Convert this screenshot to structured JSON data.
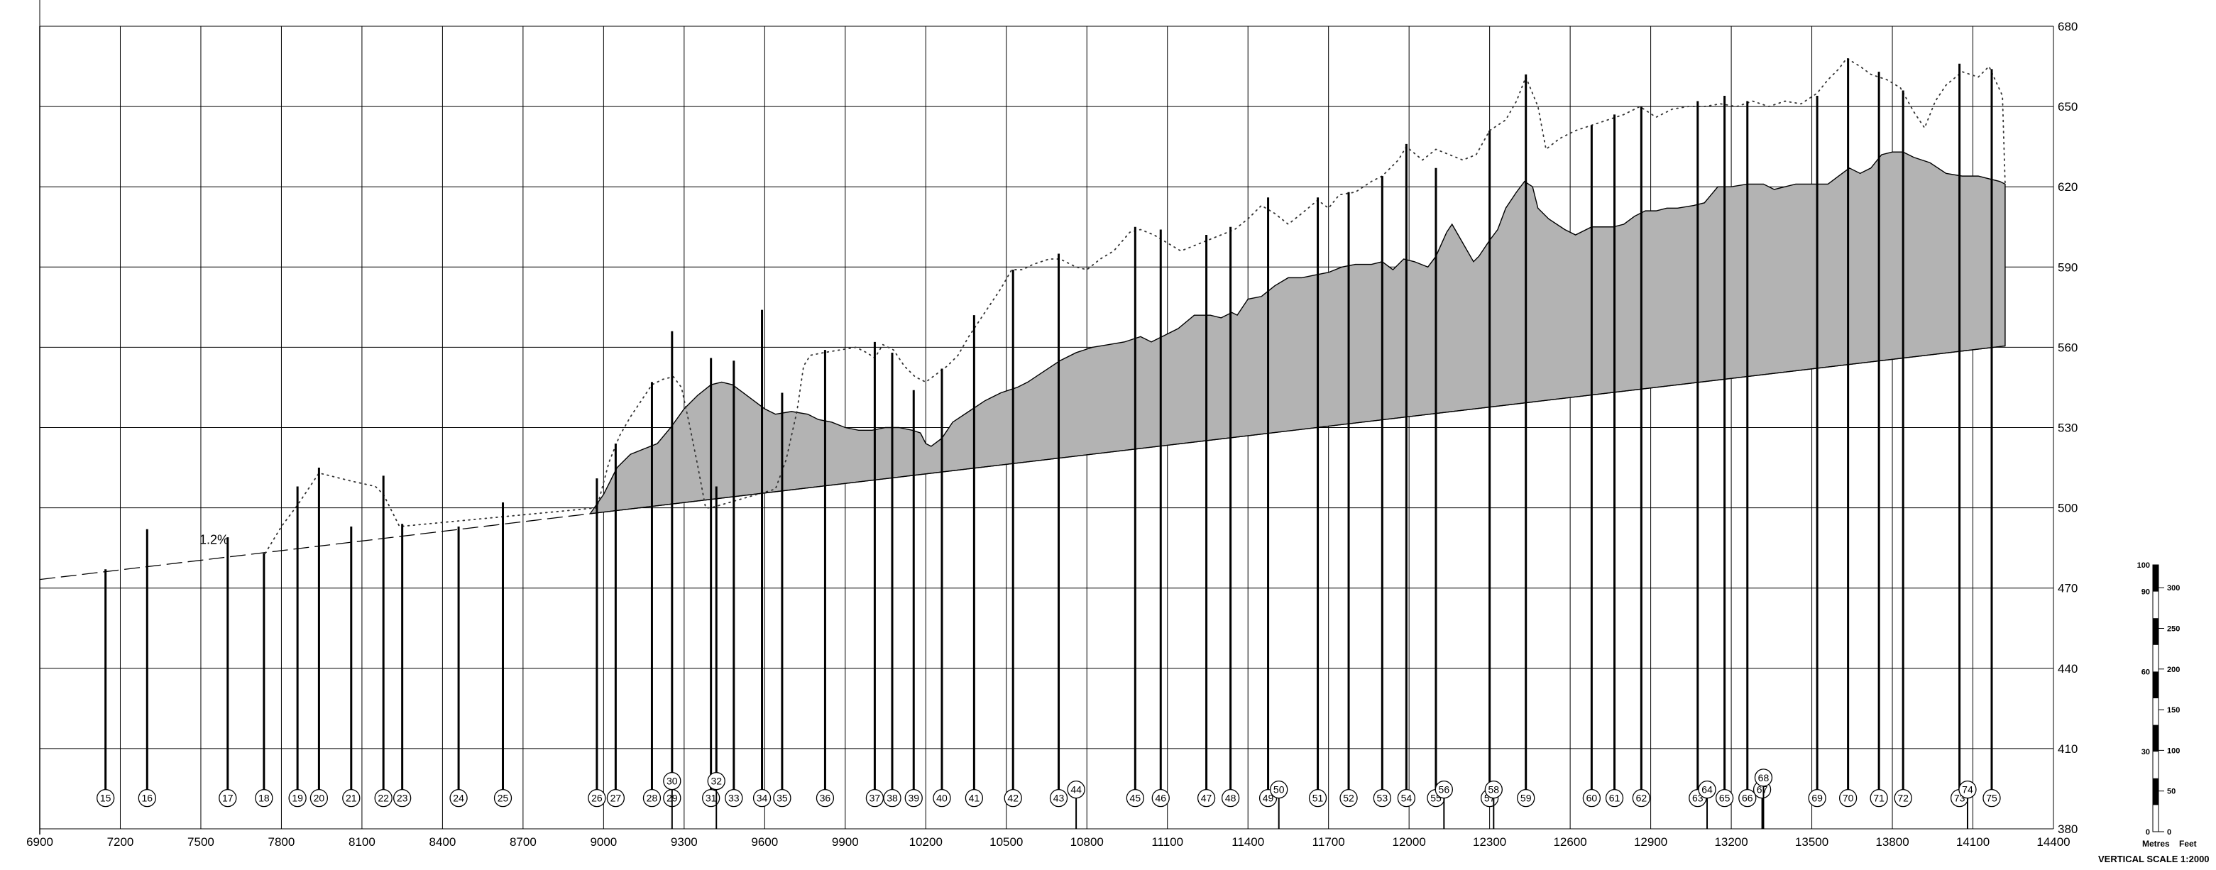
{
  "x_ticks": [
    6900,
    7200,
    7500,
    7800,
    8100,
    8400,
    8700,
    9000,
    9300,
    9600,
    9900,
    10200,
    10500,
    10800,
    11100,
    11400,
    11700,
    12000,
    12300,
    12600,
    12900,
    13200,
    13500,
    13800,
    14100,
    14400
  ],
  "y_ticks": [
    380,
    410,
    440,
    470,
    500,
    530,
    560,
    590,
    620,
    650,
    680
  ],
  "grade_label": "1.2%",
  "design_line": {
    "start": [
      6900,
      473.2
    ],
    "dashed_end": [
      8950,
      497.8
    ],
    "end": [
      14220,
      560.5
    ]
  },
  "shaft_glyph_y": 391.5,
  "shafts": [
    {
      "id": "15",
      "x": 7145,
      "top": 477
    },
    {
      "id": "16",
      "x": 7300,
      "top": 492
    },
    {
      "id": "17",
      "x": 7600,
      "top": 489
    },
    {
      "id": "18",
      "x": 7735,
      "top": 483
    },
    {
      "id": "19",
      "x": 7860,
      "top": 508
    },
    {
      "id": "20",
      "x": 7940,
      "top": 515
    },
    {
      "id": "21",
      "x": 8060,
      "top": 493
    },
    {
      "id": "22",
      "x": 8180,
      "top": 512
    },
    {
      "id": "23",
      "x": 8250,
      "top": 494
    },
    {
      "id": "24",
      "x": 8460,
      "top": 493
    },
    {
      "id": "25",
      "x": 8625,
      "top": 502
    },
    {
      "id": "26",
      "x": 8975,
      "top": 511
    },
    {
      "id": "27",
      "x": 9045,
      "top": 524
    },
    {
      "id": "28",
      "x": 9180,
      "top": 547
    },
    {
      "id": "29",
      "x": 9255,
      "top": 566
    },
    {
      "id": "30",
      "x": 9255,
      "top": 566,
      "row": 2
    },
    {
      "id": "31",
      "x": 9400,
      "top": 556
    },
    {
      "id": "32",
      "x": 9420,
      "top": 508,
      "row": 2
    },
    {
      "id": "33",
      "x": 9485,
      "top": 555
    },
    {
      "id": "34",
      "x": 9590,
      "top": 574
    },
    {
      "id": "35",
      "x": 9665,
      "top": 543
    },
    {
      "id": "36",
      "x": 9825,
      "top": 559
    },
    {
      "id": "37",
      "x": 10010,
      "top": 562
    },
    {
      "id": "38",
      "x": 10075,
      "top": 558
    },
    {
      "id": "39",
      "x": 10155,
      "top": 544
    },
    {
      "id": "40",
      "x": 10260,
      "top": 552
    },
    {
      "id": "41",
      "x": 10380,
      "top": 572
    },
    {
      "id": "42",
      "x": 10525,
      "top": 589
    },
    {
      "id": "43",
      "x": 10695,
      "top": 595
    },
    {
      "id": "44",
      "x": 10760,
      "top": 587,
      "row": 1.5
    },
    {
      "id": "45",
      "x": 10980,
      "top": 605
    },
    {
      "id": "46",
      "x": 11075,
      "top": 604
    },
    {
      "id": "47",
      "x": 11245,
      "top": 602
    },
    {
      "id": "48",
      "x": 11335,
      "top": 605
    },
    {
      "id": "49",
      "x": 11475,
      "top": 616
    },
    {
      "id": "50",
      "x": 11515,
      "top": 612,
      "row": 1.5
    },
    {
      "id": "51",
      "x": 11660,
      "top": 616
    },
    {
      "id": "52",
      "x": 11775,
      "top": 618
    },
    {
      "id": "53",
      "x": 11900,
      "top": 624
    },
    {
      "id": "54",
      "x": 11990,
      "top": 636
    },
    {
      "id": "55",
      "x": 12100,
      "top": 627
    },
    {
      "id": "56",
      "x": 12130,
      "top": 634,
      "row": 1.5
    },
    {
      "id": "57",
      "x": 12300,
      "top": 641
    },
    {
      "id": "58",
      "x": 12315,
      "top": 627,
      "row": 1.5
    },
    {
      "id": "59",
      "x": 12435,
      "top": 662
    },
    {
      "id": "60",
      "x": 12680,
      "top": 643
    },
    {
      "id": "61",
      "x": 12765,
      "top": 647
    },
    {
      "id": "62",
      "x": 12865,
      "top": 650
    },
    {
      "id": "63",
      "x": 13075,
      "top": 652
    },
    {
      "id": "64",
      "x": 13110,
      "top": 646,
      "row": 1.5
    },
    {
      "id": "65",
      "x": 13175,
      "top": 654
    },
    {
      "id": "66",
      "x": 13260,
      "top": 652
    },
    {
      "id": "67",
      "x": 13315,
      "top": 651,
      "row": 1.5
    },
    {
      "id": "68",
      "x": 13320,
      "top": 652,
      "row": 2.2
    },
    {
      "id": "69",
      "x": 13520,
      "top": 654
    },
    {
      "id": "70",
      "x": 13635,
      "top": 668
    },
    {
      "id": "71",
      "x": 13750,
      "top": 663
    },
    {
      "id": "72",
      "x": 13840,
      "top": 656
    },
    {
      "id": "73",
      "x": 14050,
      "top": 666
    },
    {
      "id": "74",
      "x": 14080,
      "top": 658,
      "row": 1.5
    },
    {
      "id": "75",
      "x": 14170,
      "top": 664
    }
  ],
  "dotted_ground": [
    [
      7740,
      483
    ],
    [
      7800,
      493
    ],
    [
      7860,
      501
    ],
    [
      7940,
      513
    ],
    [
      8060,
      510
    ],
    [
      8150,
      508
    ],
    [
      8180,
      505
    ],
    [
      8240,
      493
    ],
    [
      8975,
      500
    ],
    [
      9020,
      517
    ],
    [
      9060,
      527
    ],
    [
      9100,
      534
    ],
    [
      9140,
      540
    ],
    [
      9180,
      546
    ],
    [
      9220,
      548
    ],
    [
      9260,
      549
    ],
    [
      9290,
      545
    ],
    [
      9320,
      531
    ],
    [
      9350,
      516
    ],
    [
      9380,
      500
    ],
    [
      9400,
      500
    ],
    [
      9640,
      507
    ],
    [
      9680,
      518
    ],
    [
      9720,
      536
    ],
    [
      9745,
      553
    ],
    [
      9770,
      557
    ],
    [
      9820,
      558
    ],
    [
      9880,
      559
    ],
    [
      9940,
      560
    ],
    [
      9980,
      558
    ],
    [
      10010,
      556
    ],
    [
      10040,
      561
    ],
    [
      10080,
      559
    ],
    [
      10120,
      553
    ],
    [
      10160,
      549
    ],
    [
      10200,
      547
    ],
    [
      10240,
      550
    ],
    [
      10280,
      553
    ],
    [
      10320,
      557
    ],
    [
      10360,
      564
    ],
    [
      10400,
      570
    ],
    [
      10440,
      576
    ],
    [
      10480,
      582
    ],
    [
      10520,
      589
    ],
    [
      10560,
      589
    ],
    [
      10600,
      591
    ],
    [
      10660,
      593
    ],
    [
      10700,
      593
    ],
    [
      10760,
      590
    ],
    [
      10800,
      589
    ],
    [
      10850,
      593
    ],
    [
      10900,
      596
    ],
    [
      10960,
      603
    ],
    [
      11000,
      604
    ],
    [
      11050,
      602
    ],
    [
      11100,
      599
    ],
    [
      11150,
      596
    ],
    [
      11200,
      598
    ],
    [
      11250,
      600
    ],
    [
      11300,
      602
    ],
    [
      11350,
      604
    ],
    [
      11400,
      608
    ],
    [
      11450,
      613
    ],
    [
      11500,
      610
    ],
    [
      11550,
      606
    ],
    [
      11600,
      610
    ],
    [
      11660,
      615
    ],
    [
      11700,
      612
    ],
    [
      11740,
      617
    ],
    [
      11800,
      618
    ],
    [
      11860,
      622
    ],
    [
      11900,
      624
    ],
    [
      11960,
      630
    ],
    [
      11990,
      635
    ],
    [
      12050,
      630
    ],
    [
      12100,
      634
    ],
    [
      12150,
      632
    ],
    [
      12200,
      630
    ],
    [
      12250,
      632
    ],
    [
      12300,
      641
    ],
    [
      12360,
      645
    ],
    [
      12400,
      652
    ],
    [
      12435,
      661
    ],
    [
      12480,
      650
    ],
    [
      12510,
      634
    ],
    [
      12560,
      638
    ],
    [
      12620,
      641
    ],
    [
      12680,
      643
    ],
    [
      12740,
      645
    ],
    [
      12800,
      647
    ],
    [
      12860,
      650
    ],
    [
      12920,
      646
    ],
    [
      12980,
      649
    ],
    [
      13040,
      650
    ],
    [
      13100,
      650
    ],
    [
      13160,
      651
    ],
    [
      13220,
      650
    ],
    [
      13280,
      652
    ],
    [
      13340,
      650
    ],
    [
      13400,
      652
    ],
    [
      13460,
      651
    ],
    [
      13520,
      655
    ],
    [
      13560,
      660
    ],
    [
      13600,
      664
    ],
    [
      13630,
      668
    ],
    [
      13680,
      665
    ],
    [
      13720,
      662
    ],
    [
      13780,
      660
    ],
    [
      13830,
      657
    ],
    [
      13880,
      648
    ],
    [
      13920,
      642
    ],
    [
      13960,
      652
    ],
    [
      14000,
      658
    ],
    [
      14060,
      663
    ],
    [
      14120,
      661
    ],
    [
      14160,
      665
    ],
    [
      14210,
      654
    ],
    [
      14220,
      621
    ]
  ],
  "terrain_top": [
    [
      8950,
      497.8
    ],
    [
      9000,
      505
    ],
    [
      9050,
      515
    ],
    [
      9100,
      520
    ],
    [
      9150,
      522
    ],
    [
      9200,
      524
    ],
    [
      9250,
      530
    ],
    [
      9300,
      537
    ],
    [
      9350,
      542
    ],
    [
      9400,
      546
    ],
    [
      9440,
      547
    ],
    [
      9480,
      546
    ],
    [
      9520,
      543
    ],
    [
      9560,
      540
    ],
    [
      9600,
      537
    ],
    [
      9640,
      535
    ],
    [
      9700,
      536
    ],
    [
      9760,
      535
    ],
    [
      9800,
      533
    ],
    [
      9850,
      532
    ],
    [
      9900,
      530
    ],
    [
      9950,
      529
    ],
    [
      10000,
      529
    ],
    [
      10050,
      530
    ],
    [
      10100,
      530
    ],
    [
      10150,
      529
    ],
    [
      10180,
      528
    ],
    [
      10200,
      524
    ],
    [
      10220,
      523
    ],
    [
      10260,
      526
    ],
    [
      10300,
      532
    ],
    [
      10360,
      536
    ],
    [
      10420,
      540
    ],
    [
      10480,
      543
    ],
    [
      10540,
      545
    ],
    [
      10580,
      547
    ],
    [
      10640,
      551
    ],
    [
      10700,
      555
    ],
    [
      10760,
      558
    ],
    [
      10820,
      560
    ],
    [
      10880,
      561
    ],
    [
      10940,
      562
    ],
    [
      11000,
      564
    ],
    [
      11040,
      562
    ],
    [
      11080,
      564
    ],
    [
      11140,
      567
    ],
    [
      11200,
      572
    ],
    [
      11260,
      572
    ],
    [
      11300,
      571
    ],
    [
      11340,
      573
    ],
    [
      11360,
      572
    ],
    [
      11400,
      578
    ],
    [
      11450,
      579
    ],
    [
      11500,
      583
    ],
    [
      11550,
      586
    ],
    [
      11600,
      586
    ],
    [
      11650,
      587
    ],
    [
      11700,
      588
    ],
    [
      11750,
      590
    ],
    [
      11800,
      591
    ],
    [
      11860,
      591
    ],
    [
      11900,
      592
    ],
    [
      11940,
      589
    ],
    [
      11980,
      593
    ],
    [
      12020,
      592
    ],
    [
      12070,
      590
    ],
    [
      12100,
      594
    ],
    [
      12140,
      603
    ],
    [
      12160,
      606
    ],
    [
      12200,
      599
    ],
    [
      12240,
      592
    ],
    [
      12260,
      594
    ],
    [
      12300,
      600
    ],
    [
      12330,
      604
    ],
    [
      12360,
      612
    ],
    [
      12400,
      618
    ],
    [
      12430,
      622
    ],
    [
      12460,
      620
    ],
    [
      12480,
      612
    ],
    [
      12520,
      608
    ],
    [
      12580,
      604
    ],
    [
      12620,
      602
    ],
    [
      12680,
      605
    ],
    [
      12720,
      605
    ],
    [
      12760,
      605
    ],
    [
      12800,
      606
    ],
    [
      12840,
      609
    ],
    [
      12880,
      611
    ],
    [
      12920,
      611
    ],
    [
      12960,
      612
    ],
    [
      13000,
      612
    ],
    [
      13060,
      613
    ],
    [
      13100,
      614
    ],
    [
      13150,
      620
    ],
    [
      13200,
      620
    ],
    [
      13260,
      621
    ],
    [
      13320,
      621
    ],
    [
      13360,
      619
    ],
    [
      13400,
      620
    ],
    [
      13440,
      621
    ],
    [
      13480,
      621
    ],
    [
      13520,
      621
    ],
    [
      13560,
      621
    ],
    [
      13600,
      624
    ],
    [
      13640,
      627
    ],
    [
      13680,
      625
    ],
    [
      13720,
      627
    ],
    [
      13760,
      632
    ],
    [
      13800,
      633
    ],
    [
      13840,
      633
    ],
    [
      13880,
      631
    ],
    [
      13940,
      629
    ],
    [
      14000,
      625
    ],
    [
      14060,
      624
    ],
    [
      14120,
      624
    ],
    [
      14160,
      623
    ],
    [
      14200,
      622
    ],
    [
      14220,
      621
    ]
  ],
  "scale_bar": {
    "metres_label": "Metres",
    "feet_label": "Feet",
    "title": "VERTICAL SCALE 1:2000",
    "metres_ticks": [
      "100",
      "90",
      "60",
      "30",
      "0"
    ],
    "feet_ticks": [
      "300",
      "250",
      "200",
      "150",
      "100",
      "50",
      "0"
    ]
  },
  "colors": {
    "terrain": "#b3b3b3",
    "grid": "#000000",
    "ink": "#000000"
  }
}
